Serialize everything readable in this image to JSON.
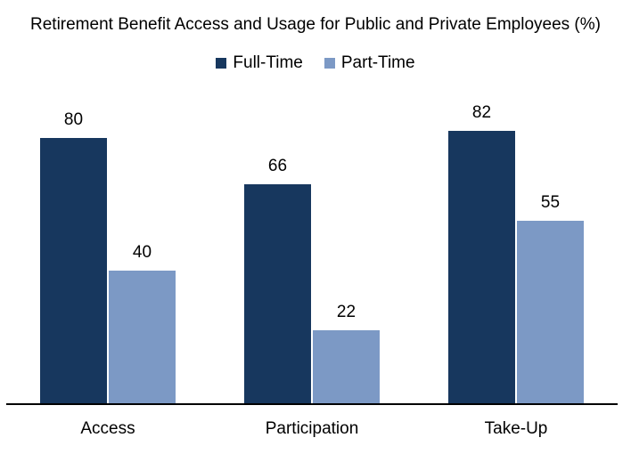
{
  "chart_data": {
    "type": "bar",
    "title": "Retirement Benefit Access and Usage for Public and Private Employees (%)",
    "categories": [
      "Access",
      "Participation",
      "Take-Up"
    ],
    "series": [
      {
        "name": "Full-Time",
        "values": [
          80,
          66,
          82
        ],
        "color": "#17375E"
      },
      {
        "name": "Part-Time",
        "values": [
          40,
          22,
          55
        ],
        "color": "#7C99C5"
      }
    ],
    "ylim": [
      0,
      100
    ],
    "grid": false,
    "y_axis_visible": false,
    "legend_position": "top-center",
    "data_labels": true,
    "axis_line_color": "#000000",
    "background_color": "#FFFFFF",
    "text_color": "#000000"
  }
}
